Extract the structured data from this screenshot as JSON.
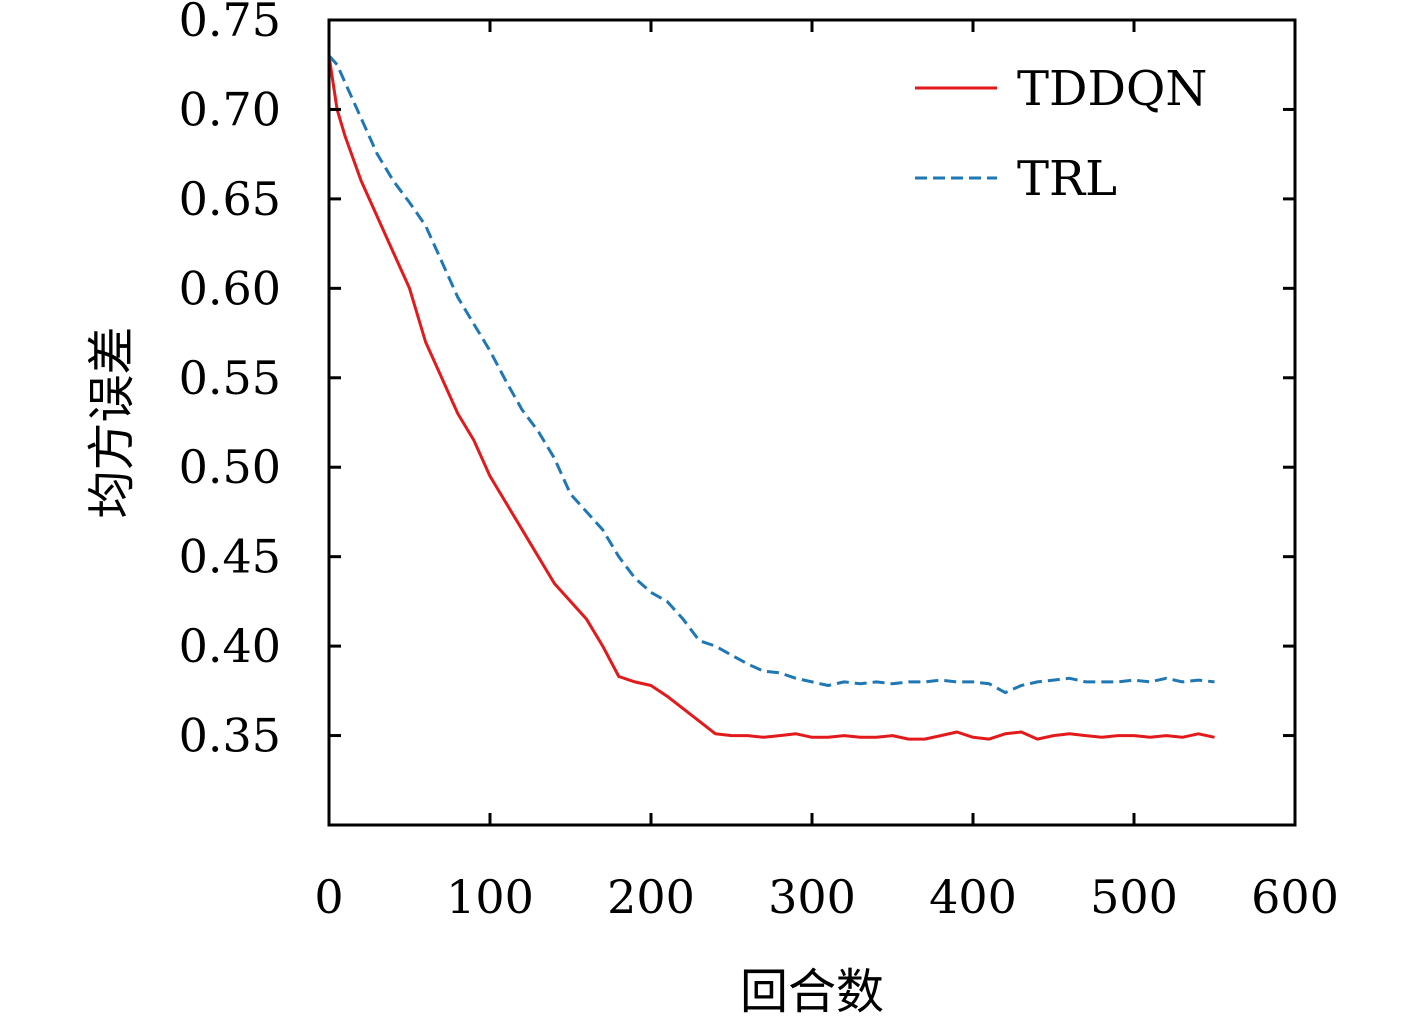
{
  "chart_data": {
    "type": "line",
    "title": "",
    "xlabel": "回合数",
    "ylabel": "均方误差",
    "xlim": [
      0,
      600
    ],
    "ylim": [
      0.3,
      0.75
    ],
    "xticks": [
      0,
      100,
      200,
      300,
      400,
      500,
      600
    ],
    "xtick_labels": [
      "0",
      "100",
      "200",
      "300",
      "400",
      "500",
      "600"
    ],
    "yticks": [
      0.35,
      0.4,
      0.45,
      0.5,
      0.55,
      0.6,
      0.65,
      0.7,
      0.75
    ],
    "ytick_labels": [
      "0.35",
      "0.40",
      "0.45",
      "0.50",
      "0.55",
      "0.60",
      "0.65",
      "0.70",
      "0.75"
    ],
    "grid": false,
    "legend": "top-right",
    "series": [
      {
        "name": "TDDQN",
        "color": "#e31a1c",
        "style": "solid",
        "x": [
          0,
          5,
          10,
          20,
          30,
          40,
          50,
          60,
          70,
          80,
          90,
          100,
          110,
          120,
          130,
          140,
          150,
          160,
          170,
          180,
          190,
          200,
          210,
          220,
          230,
          240,
          250,
          260,
          270,
          280,
          290,
          300,
          310,
          320,
          330,
          340,
          350,
          360,
          370,
          380,
          390,
          400,
          410,
          420,
          430,
          440,
          450,
          460,
          470,
          480,
          490,
          500,
          510,
          520,
          530,
          540,
          550
        ],
        "y": [
          0.73,
          0.7,
          0.685,
          0.66,
          0.64,
          0.62,
          0.6,
          0.57,
          0.55,
          0.53,
          0.515,
          0.495,
          0.48,
          0.465,
          0.45,
          0.435,
          0.425,
          0.415,
          0.4,
          0.383,
          0.38,
          0.378,
          0.372,
          0.365,
          0.358,
          0.351,
          0.35,
          0.35,
          0.349,
          0.35,
          0.351,
          0.349,
          0.349,
          0.35,
          0.349,
          0.349,
          0.35,
          0.348,
          0.348,
          0.35,
          0.352,
          0.349,
          0.348,
          0.351,
          0.352,
          0.348,
          0.35,
          0.351,
          0.35,
          0.349,
          0.35,
          0.35,
          0.349,
          0.35,
          0.349,
          0.351,
          0.349
        ]
      },
      {
        "name": "TRL",
        "color": "#1f77b4",
        "style": "dashed",
        "x": [
          0,
          5,
          10,
          20,
          30,
          40,
          50,
          60,
          70,
          80,
          90,
          100,
          110,
          120,
          130,
          140,
          150,
          160,
          170,
          180,
          190,
          200,
          210,
          220,
          230,
          240,
          250,
          260,
          270,
          280,
          290,
          300,
          310,
          320,
          330,
          340,
          350,
          360,
          370,
          380,
          390,
          400,
          410,
          420,
          430,
          440,
          450,
          460,
          470,
          480,
          490,
          500,
          510,
          520,
          530,
          540,
          550
        ],
        "y": [
          0.73,
          0.725,
          0.715,
          0.695,
          0.675,
          0.66,
          0.648,
          0.635,
          0.615,
          0.595,
          0.58,
          0.565,
          0.548,
          0.532,
          0.52,
          0.505,
          0.485,
          0.475,
          0.465,
          0.45,
          0.438,
          0.43,
          0.425,
          0.415,
          0.403,
          0.4,
          0.395,
          0.39,
          0.386,
          0.385,
          0.382,
          0.38,
          0.378,
          0.38,
          0.379,
          0.38,
          0.379,
          0.38,
          0.38,
          0.381,
          0.38,
          0.38,
          0.379,
          0.374,
          0.378,
          0.38,
          0.381,
          0.382,
          0.38,
          0.38,
          0.38,
          0.381,
          0.38,
          0.382,
          0.38,
          0.381,
          0.38
        ]
      }
    ]
  }
}
